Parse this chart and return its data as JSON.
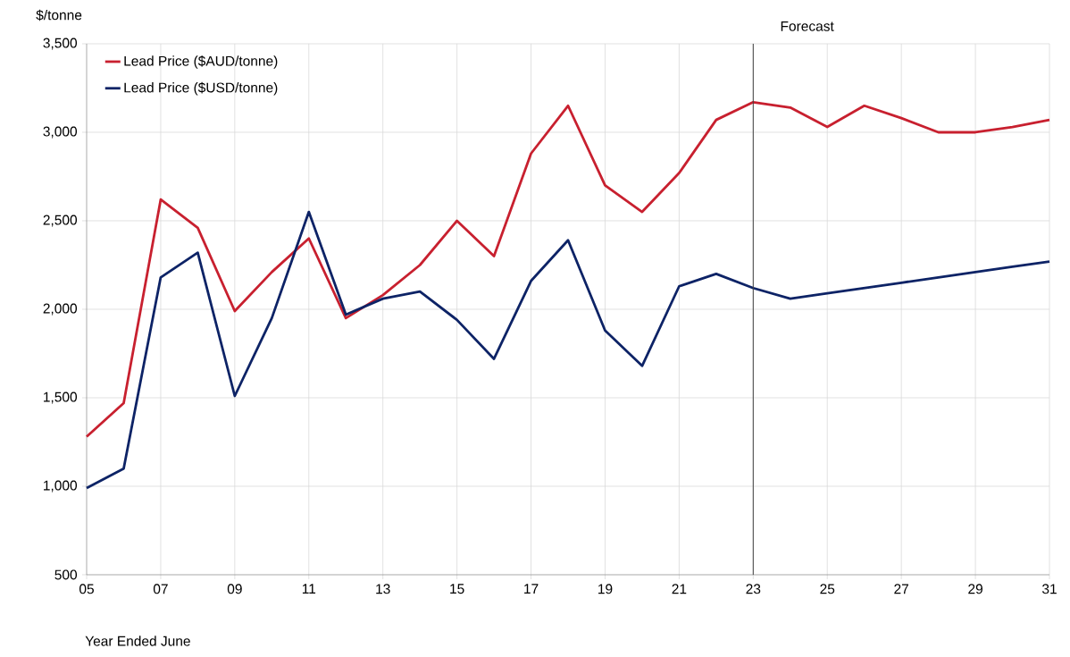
{
  "chart_data": {
    "type": "line",
    "ylabel": "$/tonne",
    "xlabel": "Year Ended June",
    "x": [
      5,
      6,
      7,
      8,
      9,
      10,
      11,
      12,
      13,
      14,
      15,
      16,
      17,
      18,
      19,
      20,
      21,
      22,
      23,
      24,
      25,
      26,
      27,
      28,
      29,
      30,
      31
    ],
    "series": [
      {
        "name": "Lead Price ($AUD/tonne)",
        "color": "#c8202f",
        "values": [
          1280,
          1470,
          2620,
          2460,
          1990,
          2210,
          2400,
          1950,
          2080,
          2250,
          2500,
          2300,
          2880,
          3150,
          2700,
          2550,
          2770,
          3070,
          3170,
          3140,
          3030,
          3150,
          3080,
          3000,
          3000,
          3030,
          3070
        ]
      },
      {
        "name": "Lead Price ($USD/tonne)",
        "color": "#0d2366",
        "values": [
          990,
          1100,
          2180,
          2320,
          1510,
          1950,
          2550,
          1970,
          2060,
          2100,
          1940,
          1720,
          2160,
          2390,
          1880,
          1680,
          2130,
          2200,
          2120,
          2060,
          2090,
          2120,
          2150,
          2180,
          2210,
          2240,
          2270
        ]
      }
    ],
    "xlim": [
      5,
      31
    ],
    "xticks": [
      {
        "value": 5,
        "label": "05"
      },
      {
        "value": 7,
        "label": "07"
      },
      {
        "value": 9,
        "label": "09"
      },
      11,
      13,
      15,
      17,
      19,
      21,
      23,
      25,
      27,
      29,
      31
    ],
    "ylim": [
      500,
      3500
    ],
    "yticks": [
      {
        "value": 500,
        "label": "500"
      },
      {
        "value": 1000,
        "label": "1,000"
      },
      {
        "value": 1500,
        "label": "1,500"
      },
      {
        "value": 2000,
        "label": "2,000"
      },
      {
        "value": 2500,
        "label": "2,500"
      },
      {
        "value": 3000,
        "label": "3,000"
      },
      {
        "value": 3500,
        "label": "3,500"
      }
    ],
    "ref_lines": [
      {
        "axis": "x",
        "value": 23,
        "label": "Forecast",
        "color": "#404040"
      }
    ],
    "grid": true,
    "legend": "top left",
    "marker": "none",
    "line_style": "solid"
  }
}
